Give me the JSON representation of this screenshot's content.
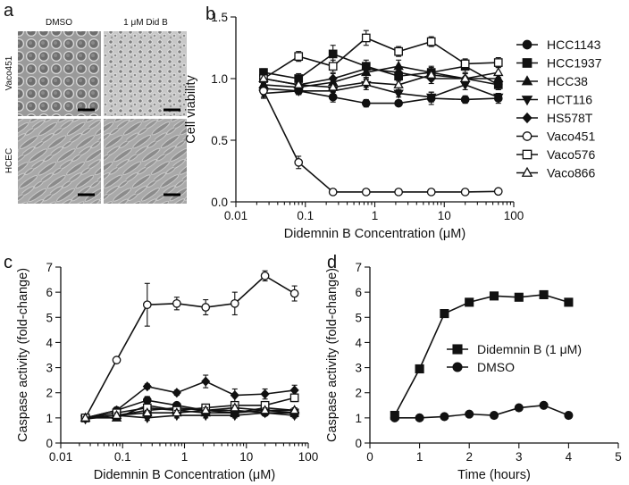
{
  "panel_labels": {
    "a": "a",
    "b": "b",
    "c": "c",
    "d": "d"
  },
  "micrographs": {
    "col_headers": [
      "DMSO",
      "1 μM Did B"
    ],
    "row_labels": [
      "Vaco451",
      "HCEC"
    ]
  },
  "chart_data": [
    {
      "id": "b",
      "type": "line",
      "xscale": "log",
      "xlabel": "Didemnin B Concentration (μM)",
      "ylabel": "Cell viability",
      "xlim": [
        0.01,
        100
      ],
      "ylim": [
        0,
        1.5
      ],
      "xticks": [
        0.01,
        0.1,
        1,
        10,
        100
      ],
      "xtick_labels": [
        "0.01",
        "0.1",
        "1",
        "10",
        "100"
      ],
      "yticks": [
        0.0,
        0.5,
        1.0,
        1.5
      ],
      "ytick_labels": [
        "0.0",
        "0.5",
        "1.0",
        "1.5"
      ],
      "legend": "right",
      "x": [
        0.025,
        0.08,
        0.25,
        0.75,
        2.2,
        6.5,
        20,
        60
      ],
      "series": [
        {
          "name": "HCC1143",
          "marker": "circle-filled",
          "values": [
            0.92,
            0.9,
            0.85,
            0.8,
            0.8,
            0.84,
            0.83,
            0.84
          ],
          "err": [
            0.03,
            0.03,
            0.04,
            0.03,
            0.02,
            0.05,
            0.03,
            0.04
          ]
        },
        {
          "name": "HCC1937",
          "marker": "square-filled",
          "values": [
            1.05,
            1.0,
            1.2,
            1.1,
            1.02,
            1.05,
            1.1,
            0.95
          ],
          "err": [
            0.03,
            0.04,
            0.07,
            0.05,
            0.04,
            0.05,
            0.05,
            0.04
          ]
        },
        {
          "name": "HCC38",
          "marker": "triangle-up-filled",
          "values": [
            0.95,
            0.93,
            0.97,
            1.05,
            1.1,
            1.05,
            1.0,
            1.0
          ],
          "err": [
            0.04,
            0.04,
            0.04,
            0.05,
            0.05,
            0.04,
            0.04,
            0.04
          ]
        },
        {
          "name": "HCT116",
          "marker": "triangle-down-filled",
          "values": [
            0.88,
            0.9,
            0.9,
            0.95,
            0.88,
            0.85,
            0.95,
            0.85
          ],
          "err": [
            0.03,
            0.03,
            0.04,
            0.04,
            0.03,
            0.04,
            0.04,
            0.03
          ]
        },
        {
          "name": "HS578T",
          "marker": "diamond-filled",
          "values": [
            1.0,
            0.95,
            1.0,
            1.08,
            1.05,
            1.0,
            1.0,
            0.95
          ],
          "err": [
            0.04,
            0.04,
            0.04,
            0.05,
            0.05,
            0.04,
            0.04,
            0.04
          ]
        },
        {
          "name": "Vaco451",
          "marker": "circle-open",
          "values": [
            0.9,
            0.32,
            0.08,
            0.08,
            0.08,
            0.08,
            0.08,
            0.085
          ],
          "err": [
            0.06,
            0.05,
            0.01,
            0.01,
            0.01,
            0.01,
            0.01,
            0.01
          ]
        },
        {
          "name": "Vaco576",
          "marker": "square-open",
          "values": [
            1.0,
            1.18,
            1.1,
            1.33,
            1.22,
            1.3,
            1.12,
            1.13
          ],
          "err": [
            0.05,
            0.04,
            0.05,
            0.06,
            0.04,
            0.04,
            0.04,
            0.04
          ]
        },
        {
          "name": "Vaco866",
          "marker": "triangle-up-open",
          "values": [
            1.0,
            0.95,
            0.93,
            0.97,
            0.95,
            1.03,
            1.0,
            1.05
          ],
          "err": [
            0.04,
            0.04,
            0.04,
            0.04,
            0.04,
            0.04,
            0.04,
            0.04
          ]
        }
      ]
    },
    {
      "id": "c",
      "type": "line",
      "xscale": "log",
      "xlabel": "Didemnin B Concentration (μM)",
      "ylabel": "Caspase activity (fold-change)",
      "xlim": [
        0.01,
        100
      ],
      "ylim": [
        0,
        7
      ],
      "xticks": [
        0.01,
        0.1,
        1,
        10,
        100
      ],
      "xtick_labels": [
        "0.01",
        "0.1",
        "1",
        "10",
        "100"
      ],
      "yticks": [
        0,
        1,
        2,
        3,
        4,
        5,
        6,
        7
      ],
      "ytick_labels": [
        "0",
        "1",
        "2",
        "3",
        "4",
        "5",
        "6",
        "7"
      ],
      "x": [
        0.025,
        0.08,
        0.25,
        0.75,
        2.2,
        6.5,
        20,
        60
      ],
      "series": [
        {
          "name": "HCC1143",
          "marker": "circle-filled",
          "values": [
            1.0,
            1.3,
            1.7,
            1.5,
            1.3,
            1.3,
            1.2,
            1.2
          ],
          "err": [
            0.05,
            0.1,
            0.15,
            0.1,
            0.1,
            0.1,
            0.1,
            0.1
          ]
        },
        {
          "name": "HCC1937",
          "marker": "square-filled",
          "values": [
            1.0,
            1.1,
            1.3,
            1.4,
            1.3,
            1.2,
            1.3,
            1.2
          ],
          "err": [
            0.05,
            0.1,
            0.1,
            0.1,
            0.1,
            0.1,
            0.1,
            0.1
          ]
        },
        {
          "name": "HCC38",
          "marker": "triangle-up-filled",
          "values": [
            1.0,
            1.0,
            1.5,
            1.3,
            1.2,
            1.2,
            1.4,
            1.3
          ],
          "err": [
            0.05,
            0.1,
            0.1,
            0.1,
            0.1,
            0.1,
            0.1,
            0.1
          ]
        },
        {
          "name": "HCT116",
          "marker": "triangle-down-filled",
          "values": [
            0.95,
            1.1,
            1.0,
            1.1,
            1.1,
            1.1,
            1.2,
            1.1
          ],
          "err": [
            0.05,
            0.1,
            0.1,
            0.1,
            0.1,
            0.1,
            0.1,
            0.1
          ]
        },
        {
          "name": "HS578T",
          "marker": "diamond-filled",
          "values": [
            1.0,
            1.3,
            2.25,
            2.0,
            2.45,
            1.9,
            1.95,
            2.1
          ],
          "err": [
            0.05,
            0.1,
            0.1,
            0.1,
            0.25,
            0.25,
            0.2,
            0.2
          ]
        },
        {
          "name": "Vaco451",
          "marker": "circle-open",
          "values": [
            1.0,
            3.3,
            5.5,
            5.55,
            5.4,
            5.55,
            6.65,
            5.95
          ],
          "err": [
            0.05,
            0.1,
            0.85,
            0.25,
            0.3,
            0.45,
            0.2,
            0.3
          ]
        },
        {
          "name": "Vaco576",
          "marker": "square-open",
          "values": [
            1.0,
            1.2,
            1.4,
            1.3,
            1.4,
            1.5,
            1.5,
            1.8
          ],
          "err": [
            0.05,
            0.1,
            0.1,
            0.1,
            0.1,
            0.1,
            0.1,
            0.15
          ]
        },
        {
          "name": "Vaco866",
          "marker": "triangle-up-open",
          "values": [
            1.0,
            1.1,
            1.2,
            1.2,
            1.3,
            1.4,
            1.3,
            1.3
          ],
          "err": [
            0.05,
            0.1,
            0.1,
            0.1,
            0.1,
            0.1,
            0.1,
            0.1
          ]
        }
      ]
    },
    {
      "id": "d",
      "type": "line",
      "xscale": "linear",
      "xlabel": "Time (hours)",
      "ylabel": "Caspase activity (fold-change)",
      "xlim": [
        0,
        5
      ],
      "ylim": [
        0,
        7
      ],
      "xticks": [
        0,
        1,
        2,
        3,
        4,
        5
      ],
      "xtick_labels": [
        "0",
        "1",
        "2",
        "3",
        "4",
        "5"
      ],
      "yticks": [
        0,
        1,
        2,
        3,
        4,
        5,
        6,
        7
      ],
      "ytick_labels": [
        "0",
        "1",
        "2",
        "3",
        "4",
        "5",
        "6",
        "7"
      ],
      "legend": "center-right",
      "x": [
        0.5,
        1.0,
        1.5,
        2.0,
        2.5,
        3.0,
        3.5,
        4.0
      ],
      "series": [
        {
          "name": "Didemnin B (1 μM)",
          "marker": "square-filled",
          "values": [
            1.1,
            2.95,
            5.15,
            5.6,
            5.85,
            5.8,
            5.9,
            5.6
          ]
        },
        {
          "name": "DMSO",
          "marker": "circle-filled",
          "values": [
            1.0,
            1.0,
            1.05,
            1.15,
            1.1,
            1.4,
            1.5,
            1.1
          ]
        }
      ]
    }
  ]
}
